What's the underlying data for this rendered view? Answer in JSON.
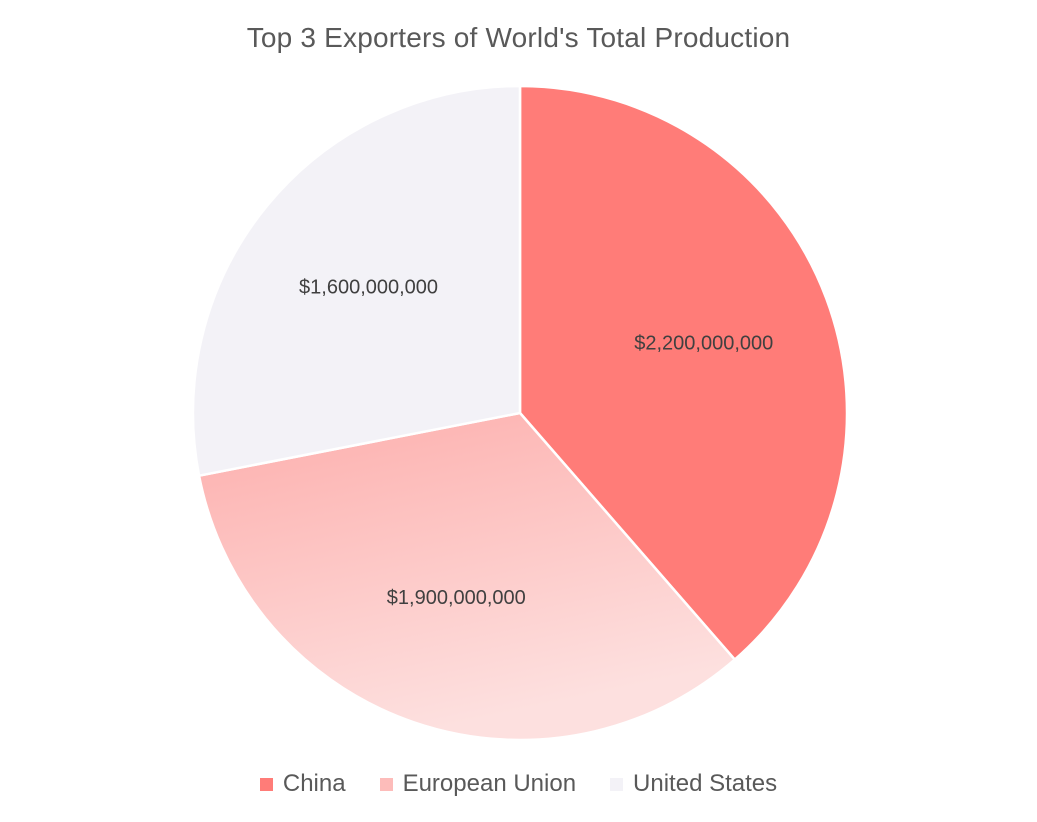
{
  "chart_data": {
    "type": "pie",
    "title": "Top 3 Exporters of World's Total Production",
    "categories": [
      "China",
      "European Union",
      "United States"
    ],
    "values": [
      2200000000,
      1900000000,
      1600000000
    ],
    "data_labels": [
      "$2,200,000,000",
      "$1,900,000,000",
      "$1,600,000,000"
    ],
    "colors": [
      "#ff7c78",
      "#fdbcba",
      "#f3f2f7"
    ],
    "legend_position": "bottom",
    "start_angle_deg": 0,
    "direction": "clockwise"
  }
}
